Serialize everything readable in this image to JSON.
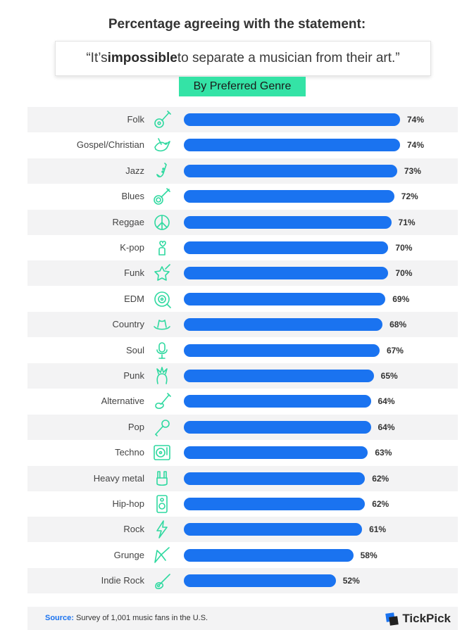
{
  "header": {
    "title": "Percentage agreeing with the statement:",
    "statement_pre": "“It’s ",
    "statement_bold": "impossible",
    "statement_post": " to separate a musician from their art.”",
    "subtitle": "By Preferred Genre"
  },
  "colors": {
    "bar": "#1a73f0",
    "accent": "#34e3a6",
    "icon": "#2fd9a0",
    "row_shade": "#f3f3f4"
  },
  "chart_data": {
    "type": "bar",
    "orientation": "horizontal",
    "categories": [
      "Folk",
      "Gospel/Christian",
      "Jazz",
      "Blues",
      "Reggae",
      "K-pop",
      "Funk",
      "EDM",
      "Country",
      "Soul",
      "Punk",
      "Alternative",
      "Pop",
      "Techno",
      "Heavy metal",
      "Hip-hop",
      "Rock",
      "Grunge",
      "Indie Rock"
    ],
    "values": [
      74,
      74,
      73,
      72,
      71,
      70,
      70,
      69,
      68,
      67,
      65,
      64,
      64,
      63,
      62,
      62,
      61,
      58,
      52
    ],
    "value_labels": [
      "74%",
      "74%",
      "73%",
      "72%",
      "71%",
      "70%",
      "70%",
      "69%",
      "68%",
      "67%",
      "65%",
      "64%",
      "64%",
      "63%",
      "62%",
      "62%",
      "61%",
      "58%",
      "52%"
    ],
    "icons": [
      "guitar-icon",
      "dove-icon",
      "saxophone-icon",
      "banjo-icon",
      "peace-icon",
      "finger-heart-icon",
      "rock-star-guitar-icon",
      "vinyl-record-icon",
      "cowboy-hat-icon",
      "microphone-icon",
      "punk-head-icon",
      "electric-guitar-icon",
      "karaoke-mic-icon",
      "turntable-icon",
      "rock-hand-icon",
      "speaker-icon",
      "lightning-icon",
      "flying-v-guitar-icon",
      "indie-guitar-icon"
    ],
    "unit": "%",
    "grid": false,
    "legend": "none"
  },
  "footer": {
    "source_label": "Source:",
    "source_text": " Survey of 1,001 music fans in the U.S.",
    "brand": "TickPick"
  }
}
